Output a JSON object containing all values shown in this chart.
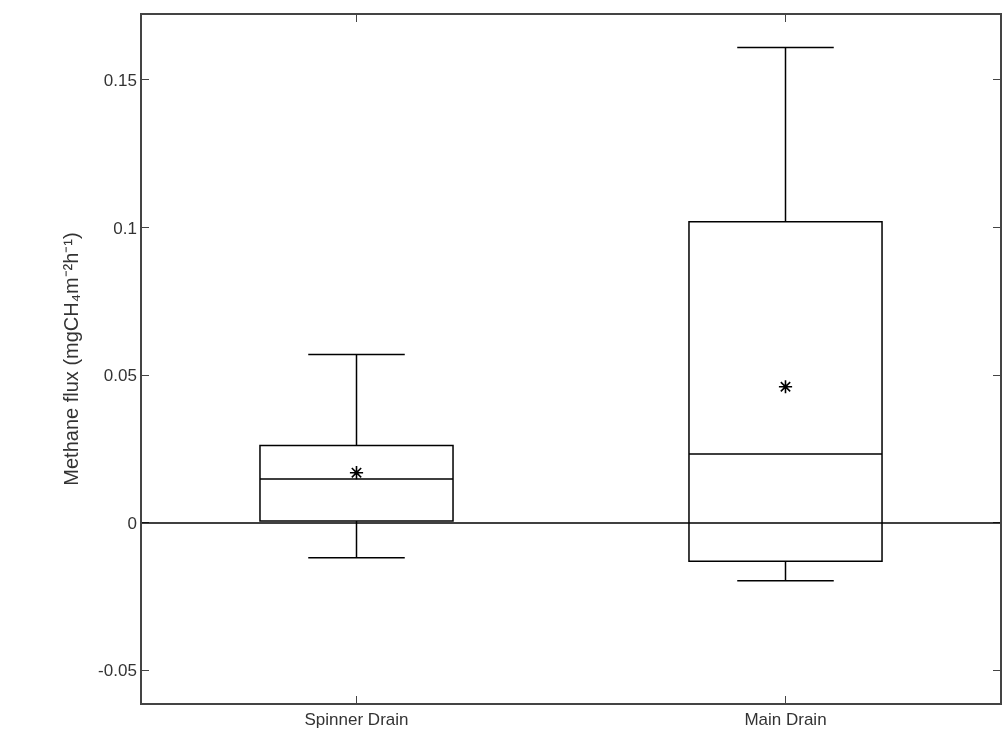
{
  "chart_data": {
    "type": "box",
    "categories": [
      "Spinner Drain",
      "Main Drain"
    ],
    "ylabel": "Methane flux (mgCH₄m⁻²h⁻¹)",
    "boxes": [
      {
        "low": -0.0118,
        "q1": 0.0006,
        "median": 0.0149,
        "q3": 0.0262,
        "high": 0.057,
        "mean": 0.017
      },
      {
        "low": -0.0196,
        "q1": -0.013,
        "median": 0.0233,
        "q3": 0.102,
        "high": 0.161,
        "mean": 0.0461
      }
    ],
    "color": "#000000",
    "marker": "star",
    "ylim": [
      -0.061,
      0.172
    ],
    "yticks": [
      -0.05,
      0,
      0.05,
      0.1,
      0.15
    ],
    "ref_lines": [
      {
        "axis": "y",
        "value": 0,
        "color": "#000000"
      }
    ]
  }
}
